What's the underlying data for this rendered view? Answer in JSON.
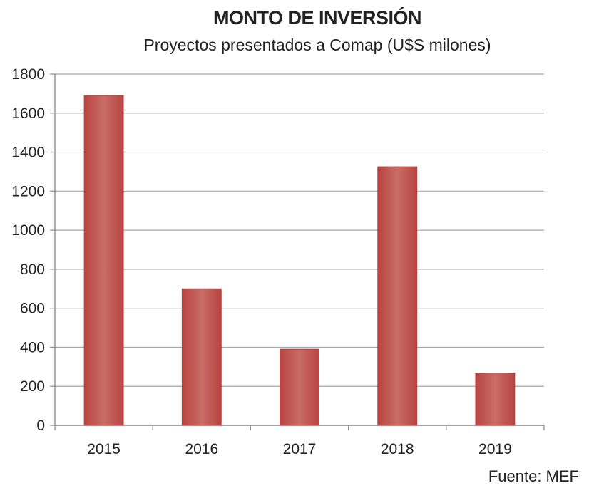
{
  "chart_data": {
    "type": "bar",
    "title": "MONTO DE INVERSIÓN",
    "subtitle": "Proyectos presentados a Comap (U$S milones)",
    "categories": [
      "2015",
      "2016",
      "2017",
      "2018",
      "2019"
    ],
    "values": [
      1690,
      700,
      390,
      1325,
      268
    ],
    "ylim": [
      0,
      1800
    ],
    "yticks": [
      0,
      200,
      400,
      600,
      800,
      1000,
      1200,
      1400,
      1600,
      1800
    ],
    "grid": true,
    "legend": "none",
    "bar_color": "#c0504d",
    "source": "Fuente: MEF"
  }
}
